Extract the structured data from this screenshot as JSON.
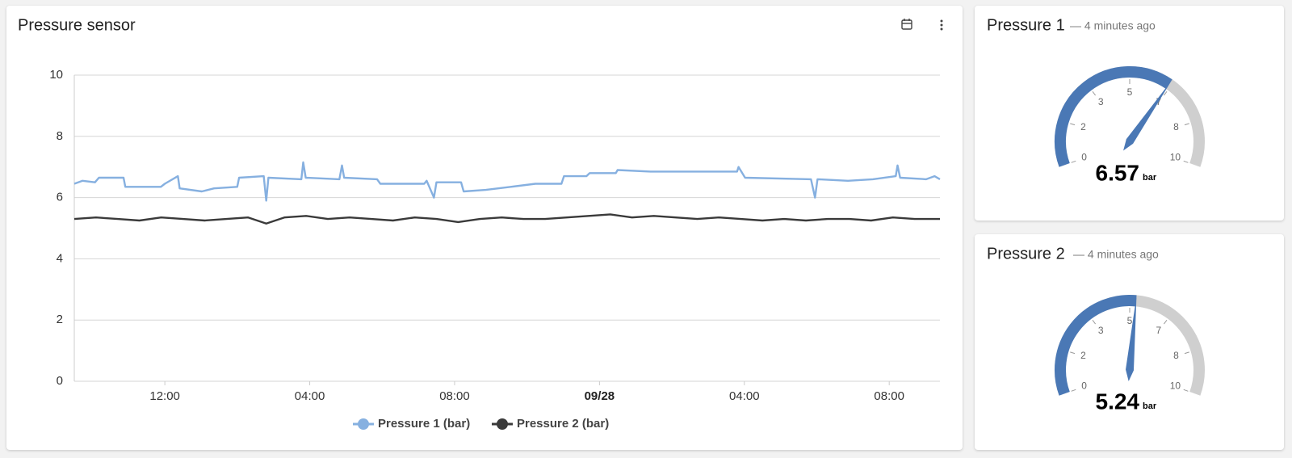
{
  "chart_data": [
    {
      "type": "line",
      "title": "Pressure sensor",
      "xlim": [
        9.5,
        33.4
      ],
      "xticks": [
        {
          "value": 12,
          "label": "12:00"
        },
        {
          "value": 16,
          "label": "04:00"
        },
        {
          "value": 20,
          "label": "08:00"
        },
        {
          "value": 24,
          "label": "09/28"
        },
        {
          "value": 28,
          "label": "04:00"
        },
        {
          "value": 32,
          "label": "08:00"
        }
      ],
      "ylim": [
        0,
        10
      ],
      "yticks": [
        0,
        2,
        4,
        6,
        8,
        10
      ],
      "grid": true,
      "series": [
        {
          "name": "Pressure 1 (bar)",
          "color": "#86b0e0",
          "x": [
            9.5,
            9.73,
            10.07,
            10.18,
            10.86,
            10.91,
            11.89,
            12.0,
            12.36,
            12.41,
            13.02,
            13.36,
            14.0,
            14.05,
            14.73,
            14.8,
            14.86,
            15.77,
            15.82,
            15.89,
            16.82,
            16.89,
            16.95,
            17.86,
            17.95,
            19.16,
            19.23,
            19.43,
            19.5,
            20.18,
            20.25,
            20.86,
            21.55,
            22.23,
            22.95,
            23.02,
            23.64,
            23.73,
            24.45,
            24.5,
            25.41,
            27.8,
            27.84,
            28.02,
            29.84,
            29.95,
            30.02,
            30.86,
            31.55,
            32.18,
            32.23,
            32.3,
            33.02,
            33.25,
            33.4
          ],
          "values": [
            6.45,
            6.55,
            6.5,
            6.65,
            6.65,
            6.35,
            6.35,
            6.45,
            6.7,
            6.3,
            6.2,
            6.3,
            6.35,
            6.65,
            6.7,
            5.9,
            6.65,
            6.6,
            7.15,
            6.65,
            6.6,
            7.05,
            6.65,
            6.6,
            6.45,
            6.45,
            6.55,
            6.0,
            6.5,
            6.5,
            6.2,
            6.25,
            6.35,
            6.45,
            6.45,
            6.7,
            6.7,
            6.8,
            6.8,
            6.9,
            6.85,
            6.85,
            7.0,
            6.65,
            6.6,
            6.0,
            6.6,
            6.55,
            6.6,
            6.7,
            7.05,
            6.65,
            6.6,
            6.7,
            6.6
          ]
        },
        {
          "name": "Pressure 2 (bar)",
          "color": "#3a3a3a",
          "x": [
            9.5,
            10.1,
            10.7,
            11.3,
            11.9,
            12.5,
            13.1,
            13.7,
            14.3,
            14.8,
            15.3,
            15.9,
            16.5,
            17.1,
            17.7,
            18.3,
            18.9,
            19.5,
            20.1,
            20.7,
            21.3,
            21.9,
            22.5,
            23.1,
            23.7,
            24.3,
            24.9,
            25.5,
            26.1,
            26.7,
            27.3,
            27.9,
            28.5,
            29.1,
            29.7,
            30.3,
            30.9,
            31.5,
            32.1,
            32.7,
            33.4
          ],
          "values": [
            5.3,
            5.35,
            5.3,
            5.25,
            5.35,
            5.3,
            5.25,
            5.3,
            5.35,
            5.15,
            5.35,
            5.4,
            5.3,
            5.35,
            5.3,
            5.25,
            5.35,
            5.3,
            5.2,
            5.3,
            5.35,
            5.3,
            5.3,
            5.35,
            5.4,
            5.45,
            5.35,
            5.4,
            5.35,
            5.3,
            5.35,
            5.3,
            5.25,
            5.3,
            5.25,
            5.3,
            5.3,
            5.25,
            5.35,
            5.3,
            5.3
          ]
        }
      ]
    },
    {
      "type": "gauge",
      "title": "Pressure 1",
      "subtitle": "— 4 minutes ago",
      "value": 6.57,
      "unit": "bar",
      "color": "#4a78b5",
      "ylim": [
        0,
        10
      ],
      "yticks": [
        0,
        {
          "value": 1.667,
          "label": "2"
        },
        {
          "value": 3.333,
          "label": "3"
        },
        5,
        {
          "value": 6.667,
          "label": "7"
        },
        {
          "value": 8.333,
          "label": "8"
        },
        10
      ]
    },
    {
      "type": "gauge",
      "title": "Pressure 2",
      "subtitle": "— 4 minutes ago",
      "value": 5.24,
      "unit": "bar",
      "color": "#4a78b5",
      "ylim": [
        0,
        10
      ],
      "yticks": [
        0,
        {
          "value": 1.667,
          "label": "2"
        },
        {
          "value": 3.333,
          "label": "3"
        },
        5,
        {
          "value": 6.667,
          "label": "7"
        },
        {
          "value": 8.333,
          "label": "8"
        },
        10
      ]
    }
  ]
}
